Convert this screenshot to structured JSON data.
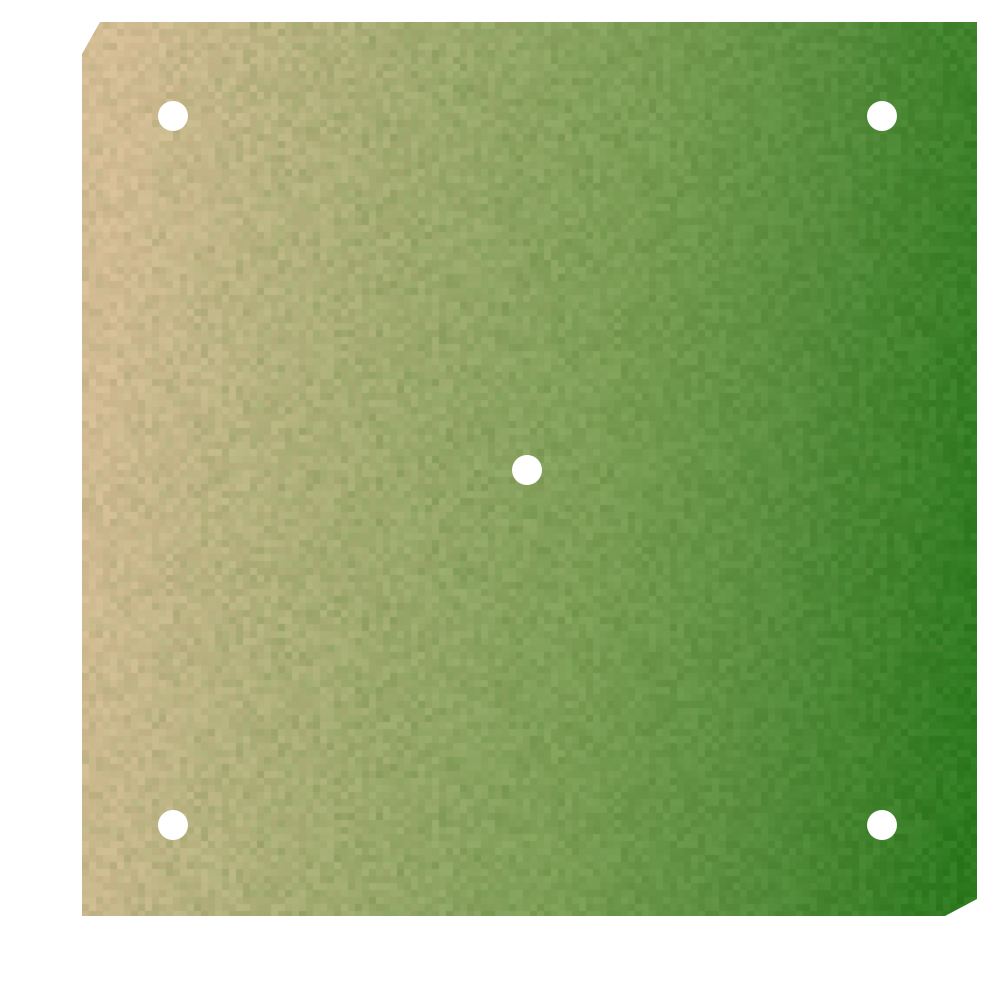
{
  "field": {
    "color_left": "#d4bc94",
    "color_mid": "#80a059",
    "color_right": "#1e7314",
    "noise_color": "#5f8a3c",
    "marker_color": "#ffffff"
  },
  "markers": [
    "top-left",
    "top-right",
    "center",
    "bottom-left",
    "bottom-right"
  ]
}
